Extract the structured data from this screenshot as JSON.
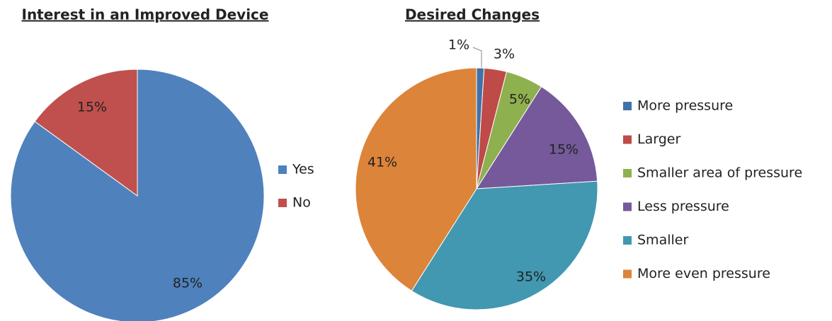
{
  "chart_data": [
    {
      "type": "pie",
      "title": "Interest in an Improved Device",
      "categories": [
        "Yes",
        "No"
      ],
      "values": [
        85,
        15
      ],
      "value_labels": [
        "85%",
        "15%"
      ],
      "colors": [
        "#4f81bd",
        "#c0504d"
      ],
      "legend": "right"
    },
    {
      "type": "pie",
      "title": "Desired Changes",
      "categories": [
        "More pressure",
        "Larger",
        "Smaller area of pressure",
        "Less pressure",
        "Smaller",
        "More even pressure"
      ],
      "values": [
        1,
        3,
        5,
        15,
        35,
        41
      ],
      "value_labels": [
        "1%",
        "3%",
        "5%",
        "15%",
        "35%",
        "41%"
      ],
      "colors": [
        "#3f72a8",
        "#be4b48",
        "#8fb04f",
        "#75599a",
        "#4198b0",
        "#dc843a"
      ],
      "legend": "right"
    }
  ]
}
